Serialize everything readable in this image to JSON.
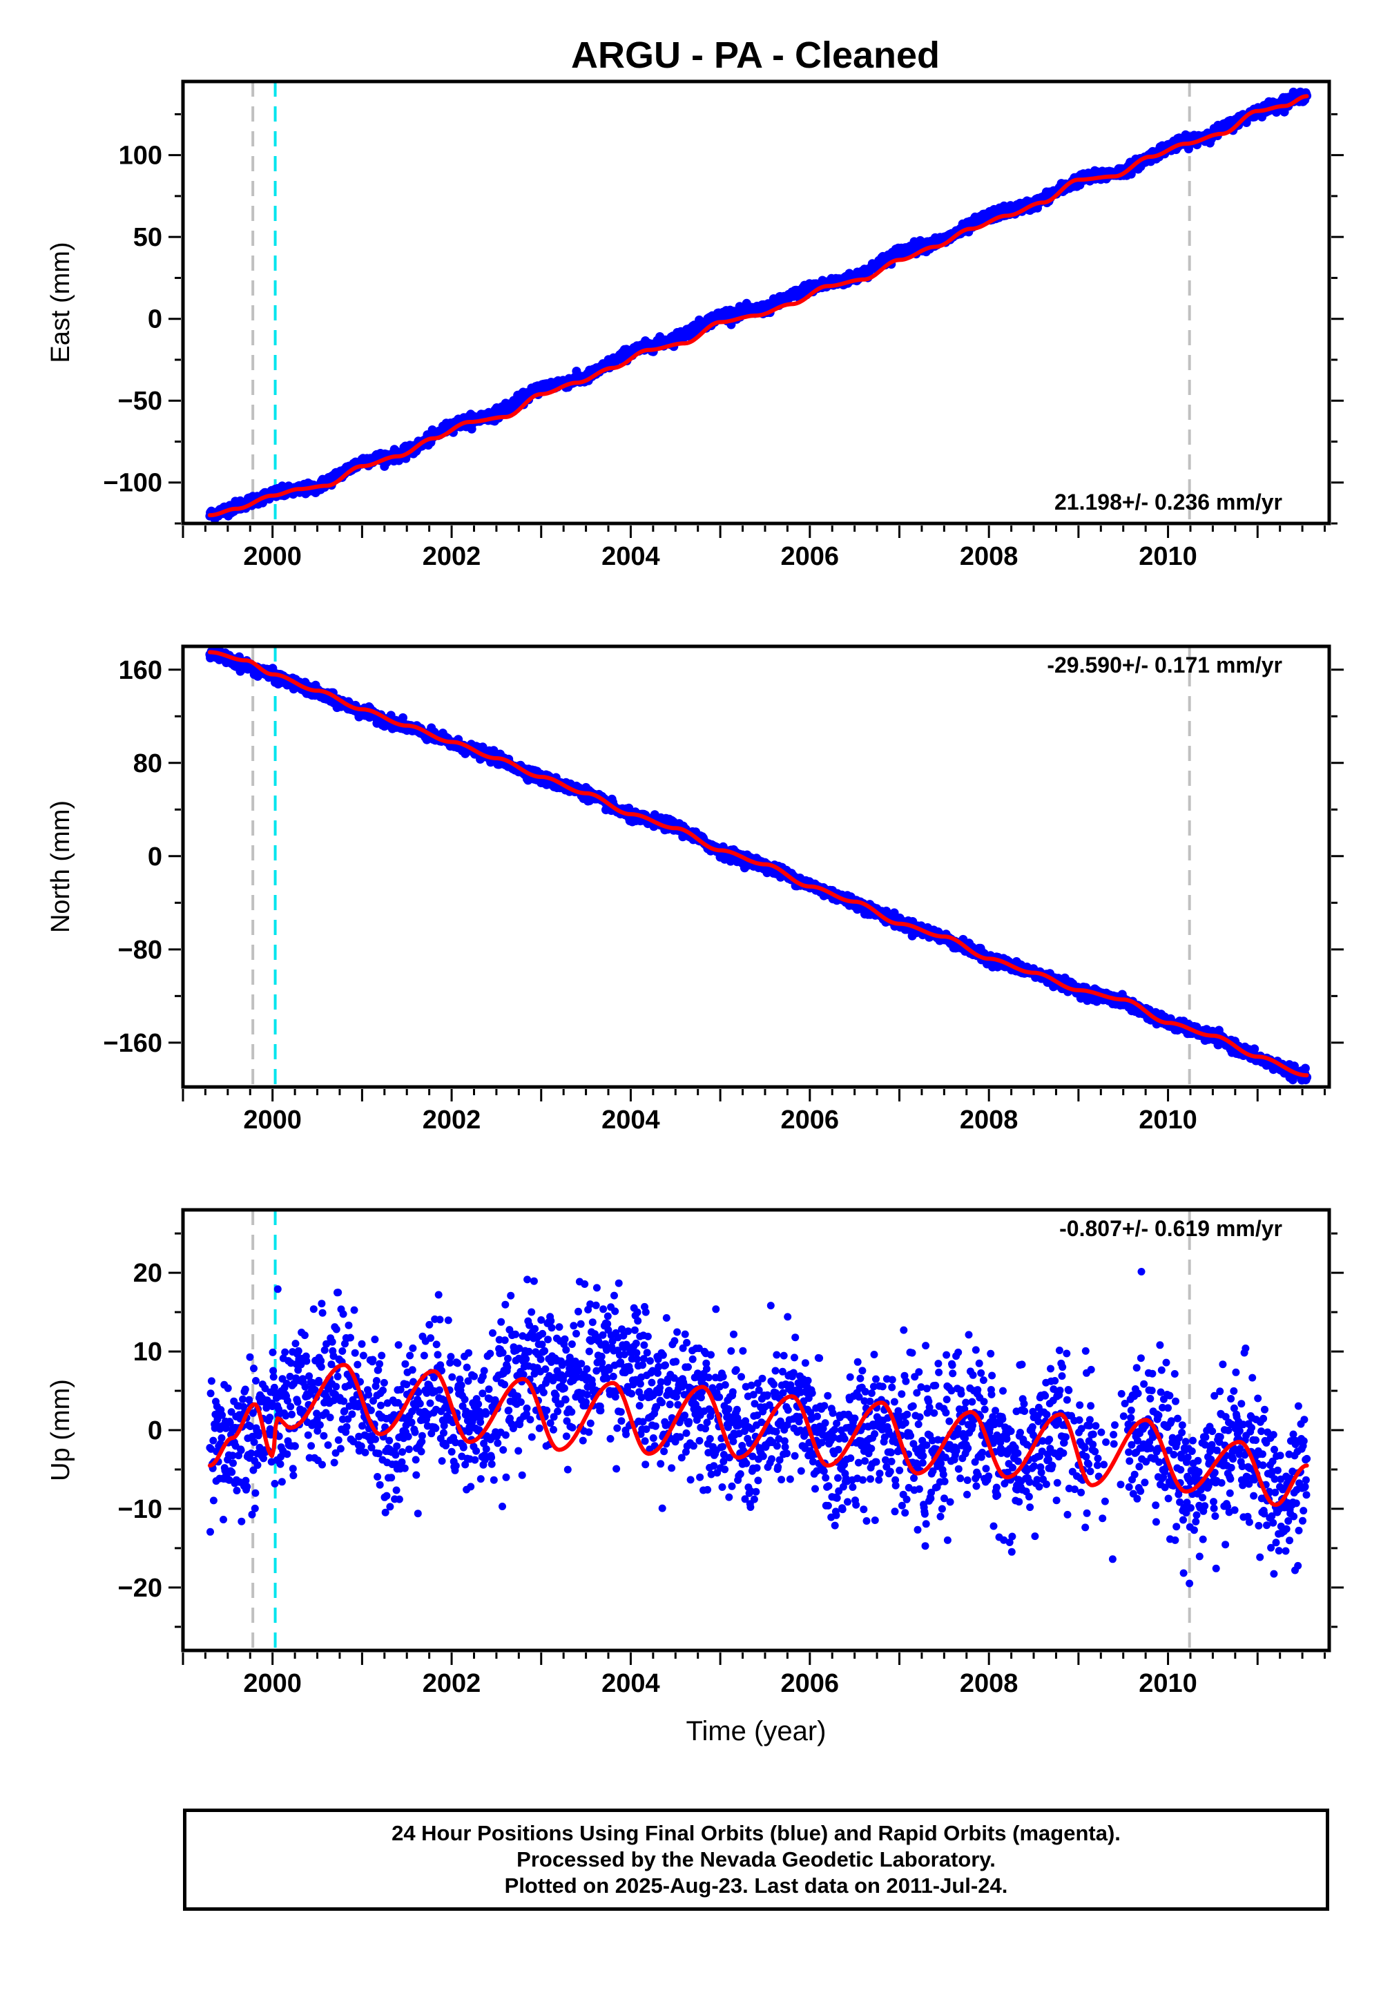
{
  "title": "ARGU  - PA - Cleaned",
  "colors": {
    "data": "#0000ff",
    "model": "#ff0000",
    "offset_line": "#c0c0c0",
    "cyan_line": "#00e5ee"
  },
  "chart_data": [
    {
      "type": "scatter",
      "ylabel": "East (mm)",
      "xlim": [
        1999.0,
        2011.8
      ],
      "ylim": [
        -125,
        145
      ],
      "xticks": [
        2000,
        2002,
        2004,
        2006,
        2008,
        2010
      ],
      "yticks": [
        -100,
        -50,
        0,
        50,
        100
      ],
      "rate_label": "21.198+/- 0.236 mm/yr",
      "rate_position": "bottom-right",
      "vertical_lines": [
        {
          "x": 1999.78,
          "style": "dashed",
          "color": "gray"
        },
        {
          "x": 2000.03,
          "style": "dashed",
          "color": "cyan"
        },
        {
          "x": 2010.24,
          "style": "dashed",
          "color": "gray"
        }
      ],
      "series": [
        {
          "style": "points",
          "color": "blue",
          "x": [
            1999.3,
            2000.0,
            2000.5,
            2001.0,
            2001.5,
            2002.0,
            2002.5,
            2003.0,
            2003.5,
            2004.0,
            2004.5,
            2005.0,
            2005.5,
            2006.0,
            2006.5,
            2007.0,
            2007.5,
            2008.0,
            2008.5,
            2009.0,
            2009.5,
            2010.0,
            2010.5,
            2011.0,
            2011.55
          ],
          "y": [
            -120,
            -107,
            -103,
            -87,
            -82,
            -65,
            -58,
            -42,
            -36,
            -20,
            -12,
            2,
            6,
            19,
            25,
            41,
            48,
            63,
            70,
            85,
            90,
            105,
            113,
            127,
            137
          ]
        },
        {
          "style": "line",
          "color": "red",
          "x": [
            1999.3,
            1999.6,
            2000.0,
            2000.3,
            2000.6,
            2001.0,
            2001.4,
            2001.8,
            2002.2,
            2002.6,
            2003.0,
            2003.4,
            2003.8,
            2004.2,
            2004.6,
            2005.0,
            2005.4,
            2005.8,
            2006.2,
            2006.6,
            2007.0,
            2007.4,
            2007.8,
            2008.2,
            2008.6,
            2009.0,
            2009.4,
            2009.8,
            2010.2,
            2010.6,
            2011.0,
            2011.3,
            2011.55
          ],
          "y": [
            -120,
            -116,
            -108,
            -104,
            -102,
            -90,
            -84,
            -73,
            -63,
            -60,
            -46,
            -39,
            -30,
            -19,
            -15,
            -2,
            2,
            9,
            20,
            24,
            36,
            44,
            55,
            63,
            71,
            85,
            87,
            99,
            107,
            113,
            127,
            130,
            136
          ]
        }
      ]
    },
    {
      "type": "scatter",
      "ylabel": "North (mm)",
      "xlim": [
        1999.0,
        2011.8
      ],
      "ylim": [
        -198,
        180
      ],
      "xticks": [
        2000,
        2002,
        2004,
        2006,
        2008,
        2010
      ],
      "yticks": [
        -160,
        -80,
        0,
        80,
        160
      ],
      "rate_label": "-29.590+/- 0.171 mm/yr",
      "rate_position": "top-right",
      "vertical_lines": [
        {
          "x": 1999.78,
          "style": "dashed",
          "color": "gray"
        },
        {
          "x": 2000.03,
          "style": "dashed",
          "color": "cyan"
        },
        {
          "x": 2010.24,
          "style": "dashed",
          "color": "gray"
        }
      ],
      "series": [
        {
          "style": "points",
          "color": "blue",
          "x": [
            1999.3,
            2000.0,
            2000.5,
            2001.0,
            2001.5,
            2002.0,
            2002.5,
            2003.0,
            2003.5,
            2004.0,
            2004.5,
            2005.0,
            2005.5,
            2006.0,
            2006.5,
            2007.0,
            2007.5,
            2008.0,
            2008.5,
            2009.0,
            2009.5,
            2010.0,
            2010.5,
            2011.0,
            2011.55
          ],
          "y": [
            175,
            155,
            140,
            124,
            111,
            97,
            84,
            67,
            54,
            34,
            26,
            4,
            -8,
            -25,
            -40,
            -57,
            -70,
            -88,
            -100,
            -115,
            -125,
            -143,
            -155,
            -173,
            -190
          ]
        },
        {
          "style": "line",
          "color": "red",
          "x": [
            1999.3,
            1999.7,
            2000.0,
            2000.5,
            2001.0,
            2001.5,
            2002.0,
            2002.5,
            2003.0,
            2003.5,
            2004.0,
            2004.5,
            2005.0,
            2005.5,
            2006.0,
            2006.5,
            2007.0,
            2007.5,
            2008.0,
            2008.5,
            2009.0,
            2009.5,
            2010.0,
            2010.5,
            2011.0,
            2011.55
          ],
          "y": [
            175,
            168,
            156,
            142,
            126,
            112,
            98,
            84,
            68,
            54,
            36,
            24,
            5,
            -7,
            -26,
            -39,
            -58,
            -69,
            -88,
            -100,
            -115,
            -123,
            -143,
            -154,
            -172,
            -188
          ]
        }
      ]
    },
    {
      "type": "scatter",
      "ylabel": "Up (mm)",
      "xlabel": "Time (year)",
      "xlim": [
        1999.0,
        2011.8
      ],
      "ylim": [
        -28,
        28
      ],
      "xticks": [
        2000,
        2002,
        2004,
        2006,
        2008,
        2010
      ],
      "yticks": [
        -20,
        -10,
        0,
        10,
        20
      ],
      "rate_label": "-0.807+/- 0.619 mm/yr",
      "rate_position": "top-right",
      "vertical_lines": [
        {
          "x": 1999.78,
          "style": "dashed",
          "color": "gray"
        },
        {
          "x": 2000.03,
          "style": "dashed",
          "color": "cyan"
        },
        {
          "x": 2010.24,
          "style": "dashed",
          "color": "gray"
        }
      ],
      "series": [
        {
          "style": "points",
          "color": "blue",
          "trend": {
            "x": [
              1999.3,
              2000.0,
              2000.8,
              2001.3,
              2001.8,
              2002.3,
              2002.8,
              2003.3,
              2003.8,
              2004.3,
              2004.8,
              2005.3,
              2005.8,
              2006.3,
              2006.8,
              2007.3,
              2007.8,
              2008.3,
              2008.8,
              2009.3,
              2009.8,
              2010.3,
              2010.8,
              2011.3,
              2011.55
            ],
            "y": [
              -3,
              1,
              7,
              -1,
              6,
              0,
              8,
              6,
              10,
              3,
              5,
              -2,
              3,
              -4,
              2,
              -4,
              2,
              -5,
              1,
              -6,
              2,
              -8,
              -1,
              -10,
              -6
            ]
          }
        },
        {
          "style": "line",
          "color": "red",
          "x": [
            1999.3,
            1999.55,
            1999.8,
            2000.0,
            2000.05,
            2000.2,
            2000.8,
            2001.2,
            2001.8,
            2002.2,
            2002.8,
            2003.2,
            2003.8,
            2004.2,
            2004.8,
            2005.2,
            2005.8,
            2006.2,
            2006.8,
            2007.2,
            2007.8,
            2008.2,
            2008.8,
            2009.15,
            2009.75,
            2010.2,
            2010.8,
            2011.2,
            2011.55
          ],
          "y": [
            -4.5,
            -1,
            3.3,
            -3.3,
            1.5,
            0.3,
            8.3,
            -0.5,
            7.5,
            -1.5,
            6.5,
            -2.5,
            6,
            -3,
            5.5,
            -3.5,
            4.3,
            -4.5,
            3.5,
            -5.5,
            2.3,
            -6,
            2,
            -7,
            1.3,
            -7.8,
            -1.5,
            -9.5,
            -4.5
          ]
        }
      ]
    }
  ],
  "footer": {
    "line1": "24 Hour Positions Using Final Orbits (blue) and Rapid Orbits (magenta).",
    "line2": "Processed by the Nevada Geodetic Laboratory.",
    "line3": "Plotted on 2025-Aug-23. Last data on 2011-Jul-24."
  }
}
